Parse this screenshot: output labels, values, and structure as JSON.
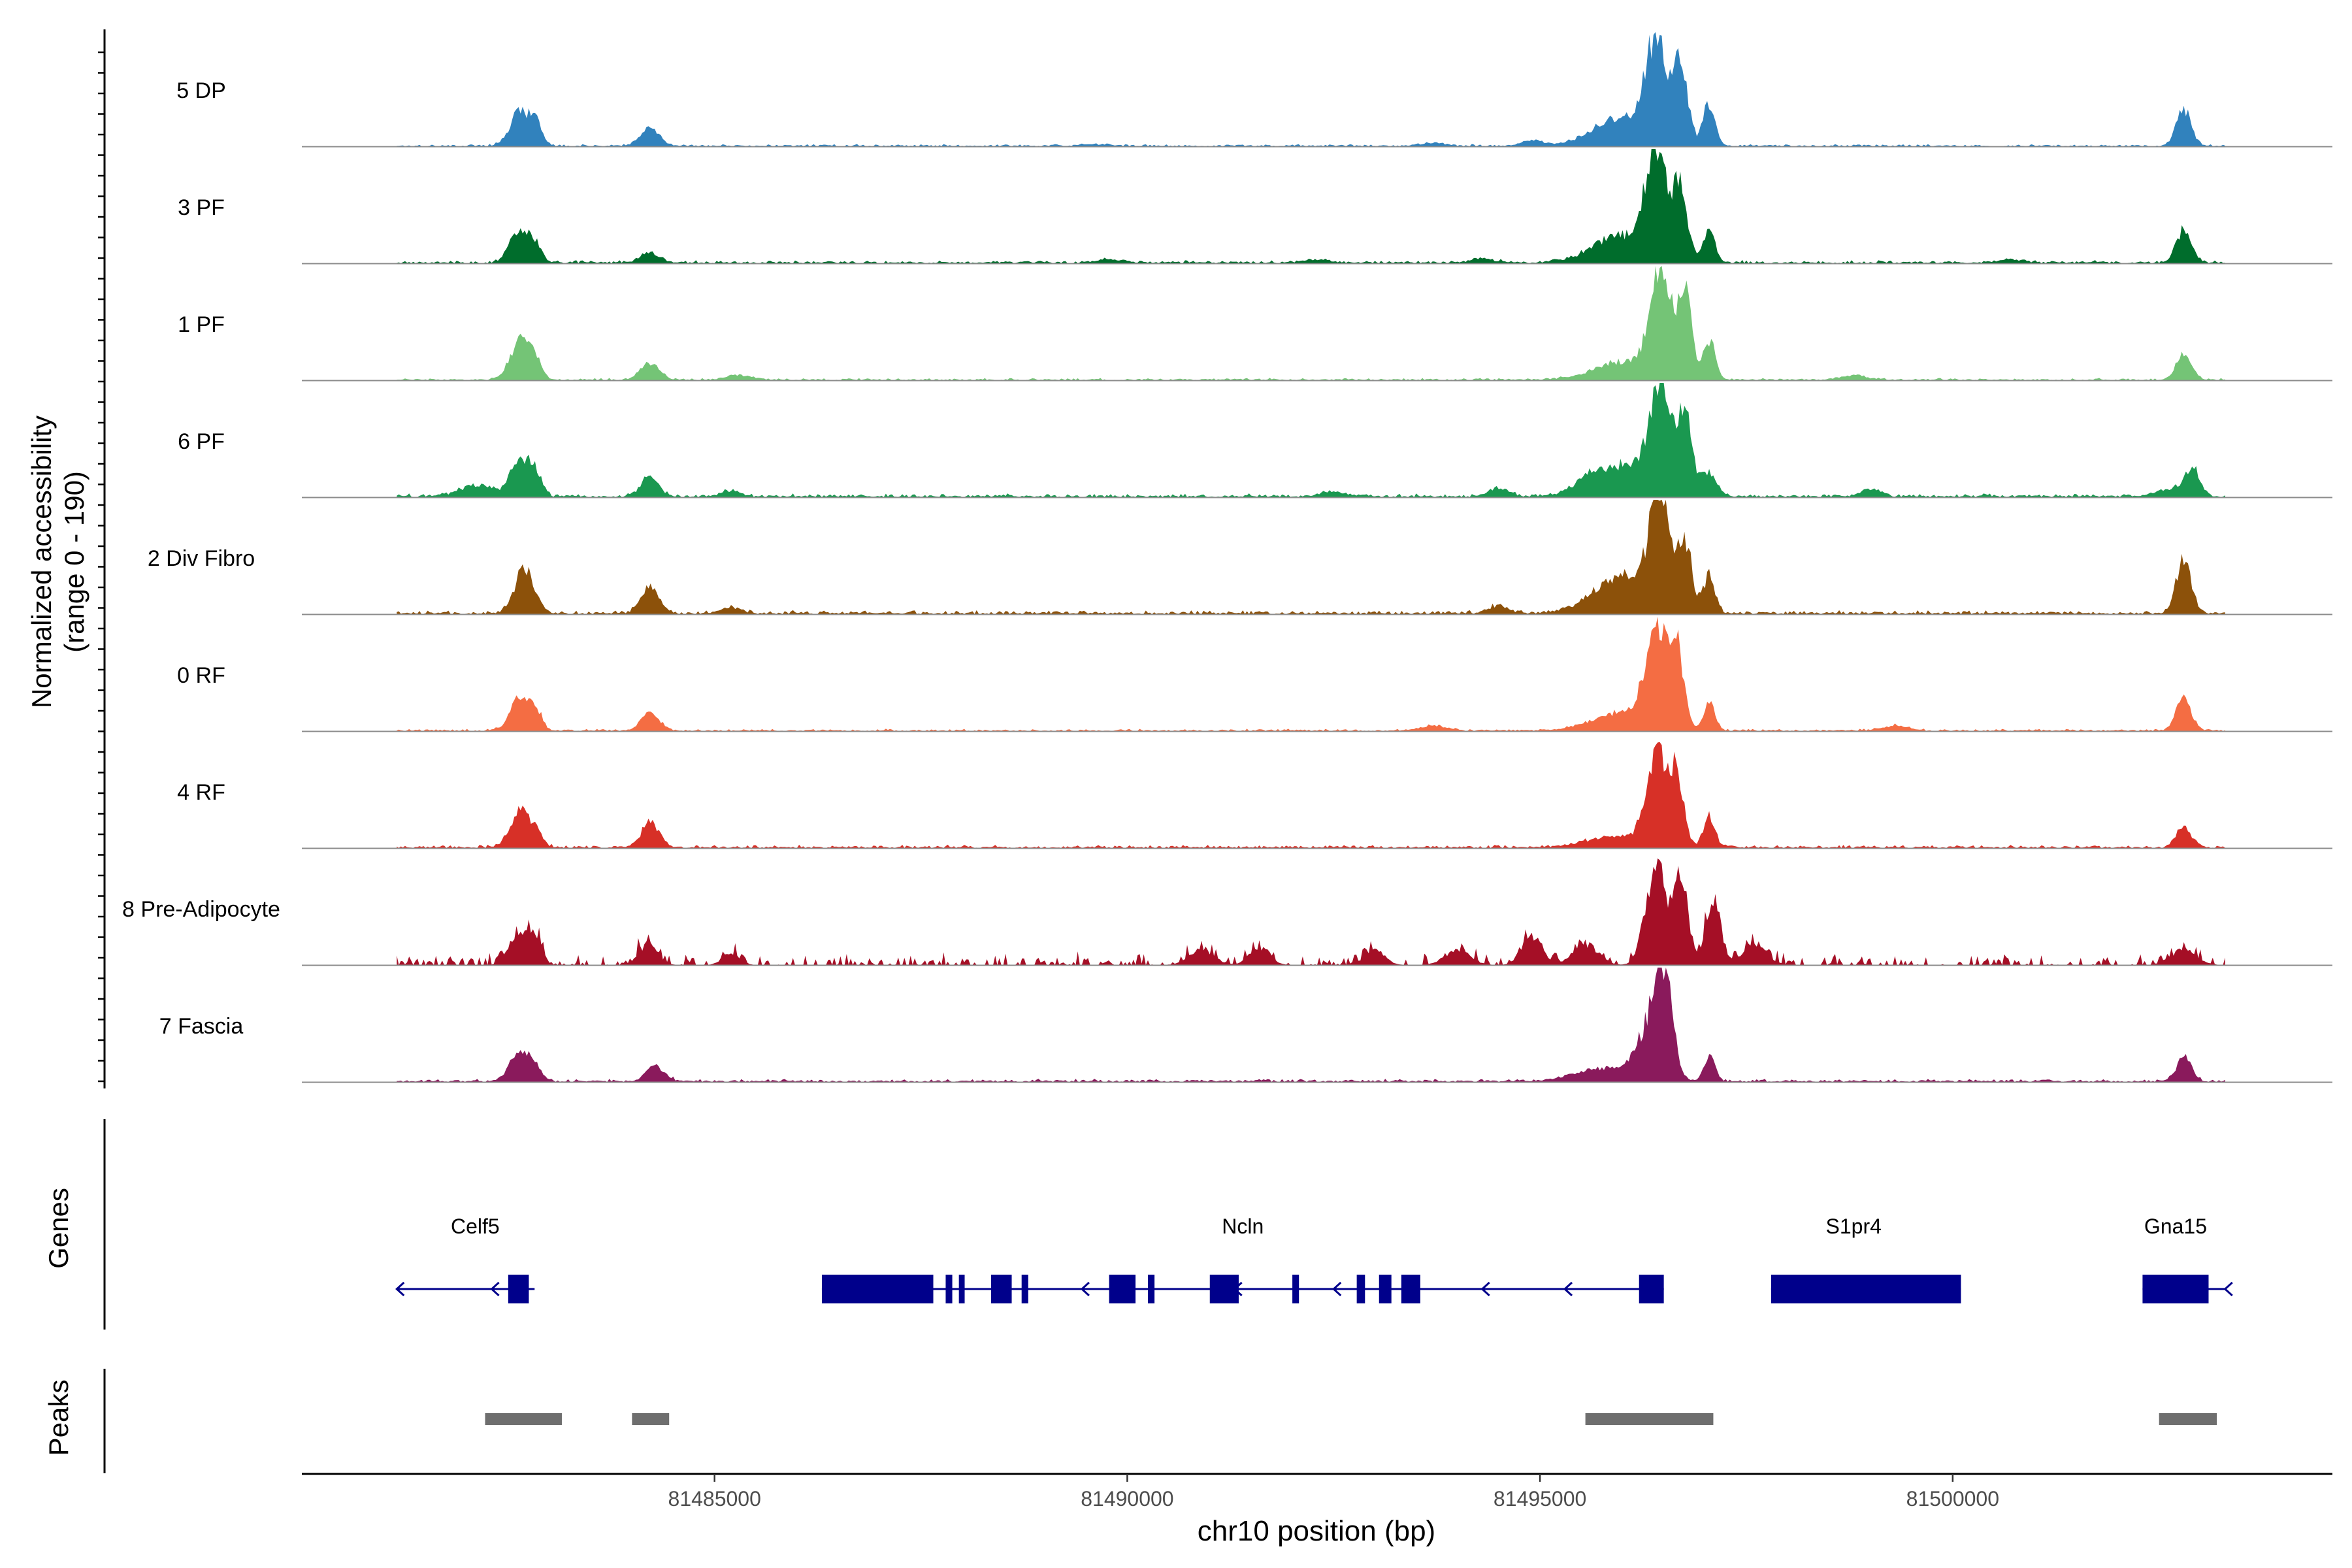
{
  "chart_data": {
    "type": "area",
    "title": "",
    "ylabel_line1": "Normalized accessibility",
    "ylabel_line2": "(range 0 - 190)",
    "xlabel": "chr10 position (bp)",
    "genes_label": "Genes",
    "peaks_label": "Peaks",
    "xlim": [
      81480000,
      81504600
    ],
    "ylim": [
      0,
      190
    ],
    "x_ticks": [
      81485000,
      81490000,
      81495000,
      81500000
    ],
    "x_tick_labels": [
      "81485000",
      "81490000",
      "81495000",
      "81500000"
    ],
    "tracks": [
      {
        "name": "5 DP",
        "color": "#3182bd",
        "noise": 3,
        "peaks": [
          [
            81482650,
            60,
            120
          ],
          [
            81482850,
            28,
            70
          ],
          [
            81484220,
            30,
            110
          ],
          [
            81489600,
            3,
            150
          ],
          [
            81493700,
            5,
            150
          ],
          [
            81494900,
            9,
            120
          ],
          [
            81496000,
            45,
            350
          ],
          [
            81496400,
            160,
            120
          ],
          [
            81496700,
            130,
            90
          ],
          [
            81497050,
            70,
            70
          ],
          [
            81502800,
            60,
            90
          ]
        ]
      },
      {
        "name": "3 PF",
        "color": "#006d2c",
        "noise": 4,
        "peaks": [
          [
            81482650,
            55,
            120
          ],
          [
            81482850,
            20,
            70
          ],
          [
            81484220,
            18,
            110
          ],
          [
            81489800,
            6,
            150
          ],
          [
            81492300,
            6,
            150
          ],
          [
            81494300,
            6,
            150
          ],
          [
            81496000,
            45,
            350
          ],
          [
            81496400,
            170,
            120
          ],
          [
            81496700,
            120,
            90
          ],
          [
            81497050,
            55,
            70
          ],
          [
            81500700,
            5,
            150
          ],
          [
            81502800,
            55,
            90
          ]
        ]
      },
      {
        "name": "1 PF",
        "color": "#74c476",
        "noise": 3,
        "peaks": [
          [
            81482650,
            65,
            120
          ],
          [
            81482850,
            25,
            70
          ],
          [
            81484220,
            28,
            110
          ],
          [
            81485300,
            8,
            150
          ],
          [
            81496000,
            30,
            350
          ],
          [
            81496450,
            175,
            120
          ],
          [
            81496750,
            140,
            90
          ],
          [
            81497050,
            65,
            70
          ],
          [
            81498800,
            8,
            150
          ],
          [
            81502800,
            45,
            90
          ]
        ]
      },
      {
        "name": "6 PF",
        "color": "#1a9850",
        "noise": 5,
        "peaks": [
          [
            81482100,
            18,
            200
          ],
          [
            81482650,
            65,
            120
          ],
          [
            81482850,
            28,
            70
          ],
          [
            81484220,
            30,
            110
          ],
          [
            81485200,
            9,
            120
          ],
          [
            81492500,
            7,
            150
          ],
          [
            81494500,
            14,
            120
          ],
          [
            81495550,
            12,
            150
          ],
          [
            81496000,
            50,
            350
          ],
          [
            81496450,
            180,
            120
          ],
          [
            81496750,
            135,
            90
          ],
          [
            81497050,
            40,
            90
          ],
          [
            81499000,
            12,
            120
          ],
          [
            81502600,
            12,
            150
          ],
          [
            81502900,
            50,
            90
          ]
        ]
      },
      {
        "name": "2 Div Fibro",
        "color": "#8c510a",
        "noise": 5,
        "peaks": [
          [
            81482700,
            75,
            120
          ],
          [
            81484220,
            45,
            110
          ],
          [
            81485200,
            10,
            120
          ],
          [
            81494500,
            12,
            120
          ],
          [
            81496000,
            60,
            350
          ],
          [
            81496450,
            185,
            120
          ],
          [
            81496750,
            110,
            90
          ],
          [
            81497050,
            60,
            70
          ],
          [
            81502800,
            90,
            90
          ]
        ]
      },
      {
        "name": "0 RF",
        "color": "#f46d43",
        "noise": 3,
        "peaks": [
          [
            81482650,
            55,
            120
          ],
          [
            81482850,
            25,
            70
          ],
          [
            81484220,
            30,
            110
          ],
          [
            81493700,
            8,
            150
          ],
          [
            81496000,
            30,
            350
          ],
          [
            81496400,
            170,
            120
          ],
          [
            81496650,
            130,
            90
          ],
          [
            81497050,
            45,
            70
          ],
          [
            81499300,
            8,
            150
          ],
          [
            81502800,
            55,
            90
          ]
        ]
      },
      {
        "name": "4 RF",
        "color": "#d73027",
        "noise": 4,
        "peaks": [
          [
            81482650,
            60,
            120
          ],
          [
            81482850,
            20,
            70
          ],
          [
            81484220,
            40,
            110
          ],
          [
            81495900,
            18,
            350
          ],
          [
            81496400,
            150,
            120
          ],
          [
            81496650,
            120,
            90
          ],
          [
            81497050,
            50,
            70
          ],
          [
            81502800,
            35,
            90
          ]
        ]
      },
      {
        "name": "8 Pre-Adipocyte",
        "color": "#a50f26",
        "noise": 18,
        "sparse": true,
        "peaks": [
          [
            81482650,
            60,
            120
          ],
          [
            81482850,
            35,
            70
          ],
          [
            81484200,
            35,
            110
          ],
          [
            81485200,
            20,
            100
          ],
          [
            81490900,
            25,
            150
          ],
          [
            81491600,
            30,
            120
          ],
          [
            81493000,
            25,
            120
          ],
          [
            81494000,
            25,
            150
          ],
          [
            81494900,
            50,
            120
          ],
          [
            81495550,
            35,
            150
          ],
          [
            81496400,
            165,
            120
          ],
          [
            81496700,
            150,
            90
          ],
          [
            81497100,
            110,
            90
          ],
          [
            81497600,
            30,
            150
          ],
          [
            81502800,
            25,
            150
          ]
        ]
      },
      {
        "name": "7 Fascia",
        "color": "#8a1a5c",
        "noise": 4,
        "peaks": [
          [
            81482650,
            55,
            120
          ],
          [
            81482850,
            15,
            70
          ],
          [
            81484280,
            25,
            110
          ],
          [
            81495800,
            22,
            350
          ],
          [
            81496300,
            70,
            150
          ],
          [
            81496500,
            160,
            110
          ],
          [
            81497050,
            40,
            70
          ],
          [
            81502800,
            40,
            90
          ]
        ]
      }
    ],
    "genes": [
      {
        "name": "Celf5",
        "label_x": 81482100,
        "line": [
          81481150,
          81482820
        ],
        "exons": [
          [
            81482500,
            81482750
          ]
        ],
        "arrows": [
          81481150,
          81482300
        ]
      },
      {
        "name": "Ncln",
        "label_x": 81491400,
        "line": [
          81486300,
          81496500
        ],
        "exons": [
          [
            81486300,
            81487650
          ],
          [
            81487800,
            81487880
          ],
          [
            81487960,
            81488030
          ],
          [
            81488350,
            81488600
          ],
          [
            81488720,
            81488800
          ],
          [
            81489780,
            81490100
          ],
          [
            81490250,
            81490330
          ],
          [
            81491000,
            81491350
          ],
          [
            81492000,
            81492080
          ],
          [
            81492780,
            81492880
          ],
          [
            81493050,
            81493200
          ],
          [
            81493320,
            81493550
          ],
          [
            81496200,
            81496500
          ]
        ],
        "arrows": [
          81489450,
          81491300,
          81492500,
          81493400,
          81494300,
          81495300
        ]
      },
      {
        "name": "S1pr4",
        "label_x": 81498800,
        "line": [
          81497800,
          81500100
        ],
        "exons": [
          [
            81497800,
            81500100
          ]
        ],
        "arrows": []
      },
      {
        "name": "Gna15",
        "label_x": 81502700,
        "line": [
          81502300,
          81503300
        ],
        "exons": [
          [
            81502300,
            81503100
          ]
        ],
        "arrows": [
          81503300
        ]
      }
    ],
    "peaks": [
      [
        81482220,
        81483150
      ],
      [
        81484000,
        81484450
      ],
      [
        81495550,
        81497100
      ],
      [
        81502500,
        81503200
      ]
    ]
  }
}
